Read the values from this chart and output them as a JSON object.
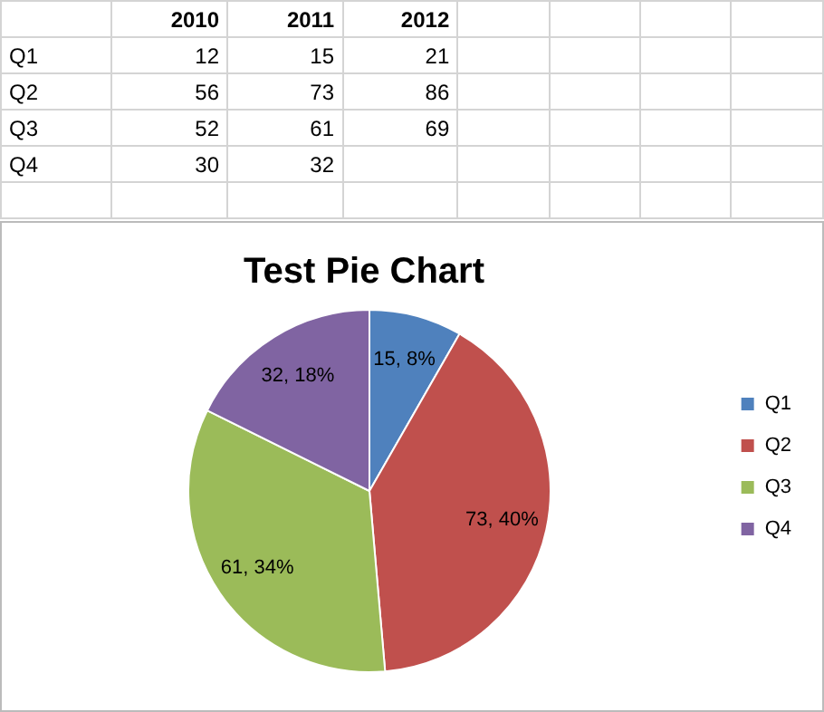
{
  "chart_data": [
    {
      "type": "other",
      "categories": [
        "Q1",
        "Q2",
        "Q3",
        "Q4"
      ],
      "series": [
        {
          "name": "2010",
          "values": [
            12,
            56,
            52,
            30
          ]
        },
        {
          "name": "2011",
          "values": [
            15,
            73,
            61,
            32
          ]
        },
        {
          "name": "2012",
          "values": [
            21,
            86,
            69,
            null
          ]
        }
      ],
      "data_labels": true
    },
    {
      "type": "pie",
      "title": "Test Pie Chart",
      "categories": [
        "Q1",
        "Q2",
        "Q3",
        "Q4"
      ],
      "values": [
        15,
        73,
        61,
        32
      ],
      "colors": [
        "#4f81bd",
        "#c0504d",
        "#9bbb59",
        "#8064a2"
      ],
      "value_labels": [
        "15, 8%",
        "73, 40%",
        "61, 34%",
        "32, 18%"
      ],
      "legend": "right"
    }
  ]
}
